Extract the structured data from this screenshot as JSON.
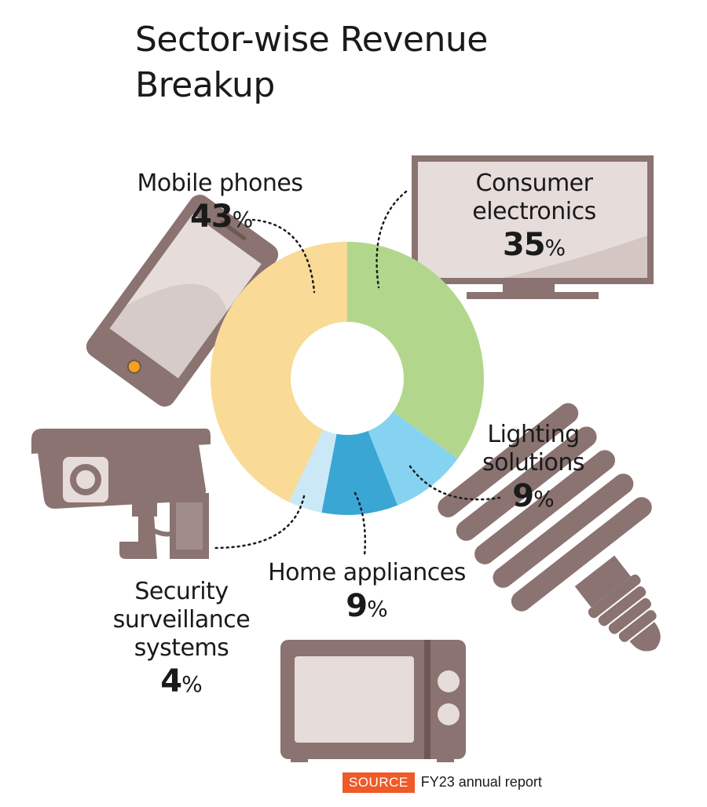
{
  "title_lines": [
    "Sector-wise Revenue",
    "Breakup"
  ],
  "source": {
    "tag": "SOURCE",
    "text": "FY23 annual report"
  },
  "chart_data": {
    "type": "pie",
    "title": "Sector-wise Revenue Breakup",
    "unit": "%",
    "categories": [
      "Consumer electronics",
      "Lighting solutions",
      "Home appliances",
      "Security surveillance systems",
      "Mobile phones"
    ],
    "values": [
      35,
      9,
      9,
      4,
      43
    ],
    "colors": [
      "#b2d78c",
      "#86d3f1",
      "#3aa6d4",
      "#cbe8f7",
      "#f9da97"
    ],
    "labels": {
      "mobile": {
        "lines": [
          "Mobile phones"
        ],
        "value": "43",
        "symbol": "%"
      },
      "consumer": {
        "lines": [
          "Consumer",
          "electronics"
        ],
        "value": "35",
        "symbol": "%"
      },
      "lighting": {
        "lines": [
          "Lighting",
          "solutions"
        ],
        "value": "9",
        "symbol": "%"
      },
      "home": {
        "lines": [
          "Home appliances"
        ],
        "value": "9",
        "symbol": "%"
      },
      "security": {
        "lines": [
          "Security",
          "surveillance",
          "systems"
        ],
        "value": "4",
        "symbol": "%"
      }
    }
  },
  "icons": [
    "smartphone-icon",
    "television-icon",
    "cctv-camera-icon",
    "light-bulb-icon",
    "microwave-icon"
  ],
  "icon_color": "#8a7370",
  "icon_screen_color": "#d6cbc8"
}
